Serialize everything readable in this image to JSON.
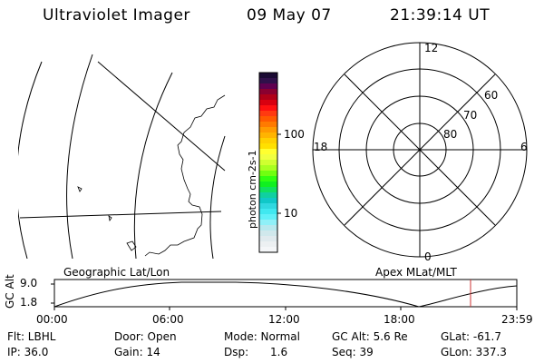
{
  "header": {
    "instrument": "Ultraviolet Imager",
    "date": "09 May 07",
    "time": "21:39:14 UT"
  },
  "colorbar": {
    "label": "photon cm-2s-1",
    "ticks": [
      "100",
      "10"
    ]
  },
  "polar_plot": {
    "mlt_labels": [
      "12",
      "18",
      "6",
      "0"
    ],
    "lat_labels": [
      "60",
      "70",
      "80"
    ]
  },
  "timeline": {
    "left_title": "Geographic Lat/Lon",
    "right_title": "Apex MLat/MLT",
    "y_axis_label": "GC Alt",
    "y_ticks": [
      "9.0",
      "1.8"
    ],
    "x_ticks": [
      "00:00",
      "06:00",
      "12:00",
      "18:00",
      "23:59"
    ],
    "marker_time": "21:39:14",
    "marker_color": "#cc3333"
  },
  "footer": {
    "flt": "Flt: LBHL",
    "ip": "IP: 36.0",
    "door": "Door: Open",
    "gain": "Gain: 14",
    "mode": "Mode: Normal",
    "dsp_label": "Dsp:",
    "dsp_value": "1.6",
    "gc_alt": "GC Alt: 5.6 Re",
    "seq": "Seq: 39",
    "glat": "GLat: -61.7",
    "glon": "GLon: 337.3"
  }
}
